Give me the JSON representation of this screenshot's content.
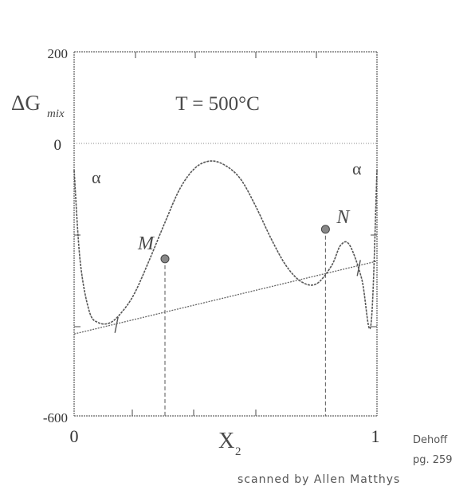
{
  "chart_data": {
    "type": "line",
    "title": "T = 500°C",
    "ylabel_main": "ΔG",
    "ylabel_sub": "mix",
    "xlabel_main": "X",
    "xlabel_sub": "2",
    "xlim": [
      0,
      1
    ],
    "ylim": [
      -600,
      200
    ],
    "x_ticks": [
      "0",
      "1"
    ],
    "y_ticks": [
      "200",
      "0",
      "-600"
    ],
    "grid": false,
    "curve": {
      "x": [
        0.0,
        0.02,
        0.05,
        0.08,
        0.12,
        0.16,
        0.2,
        0.25,
        0.3,
        0.35,
        0.4,
        0.45,
        0.5,
        0.55,
        0.6,
        0.65,
        0.7,
        0.75,
        0.8,
        0.85,
        0.88,
        0.91,
        0.95,
        0.98,
        1.0
      ],
      "y": [
        -60,
        -260,
        -370,
        -395,
        -395,
        -370,
        -330,
        -255,
        -175,
        -100,
        -55,
        -40,
        -50,
        -80,
        -140,
        -210,
        -270,
        -305,
        -310,
        -270,
        -225,
        -225,
        -300,
        -400,
        -60
      ]
    },
    "common_tangent": {
      "x": [
        0.0,
        1.0
      ],
      "y": [
        -420,
        -260
      ]
    },
    "tangent_points": [
      {
        "x": 0.14,
        "y": -400
      },
      {
        "x": 0.94,
        "y": -275
      }
    ],
    "points": [
      {
        "label": "M",
        "x": 0.3,
        "y": -255
      },
      {
        "label": "N",
        "x": 0.83,
        "y": -190
      }
    ],
    "phase_labels": [
      "α",
      "α"
    ],
    "credits": {
      "source_line1": "Dehoff",
      "source_line2": "pg. 259",
      "scan": "scanned by Allen Matthys"
    }
  }
}
